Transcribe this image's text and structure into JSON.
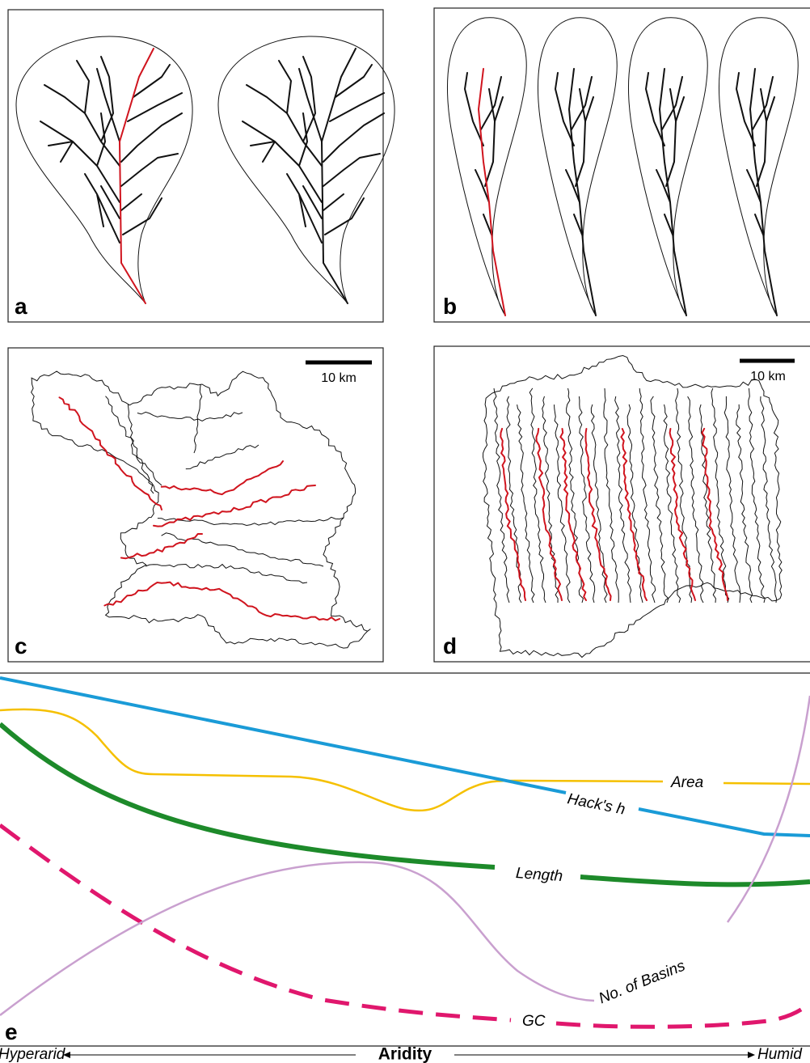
{
  "panels": [
    {
      "label": "a"
    },
    {
      "label": "b"
    },
    {
      "label": "c",
      "scale_bar": "10 km"
    },
    {
      "label": "d",
      "scale_bar": "10 km"
    },
    {
      "label": "e"
    }
  ],
  "curves": [
    "Area",
    "Hack's h",
    "Length",
    "No. of Basins",
    "GC"
  ],
  "axis": {
    "title": "Aridity",
    "left": "Hyperarid",
    "right": "Humid"
  }
}
